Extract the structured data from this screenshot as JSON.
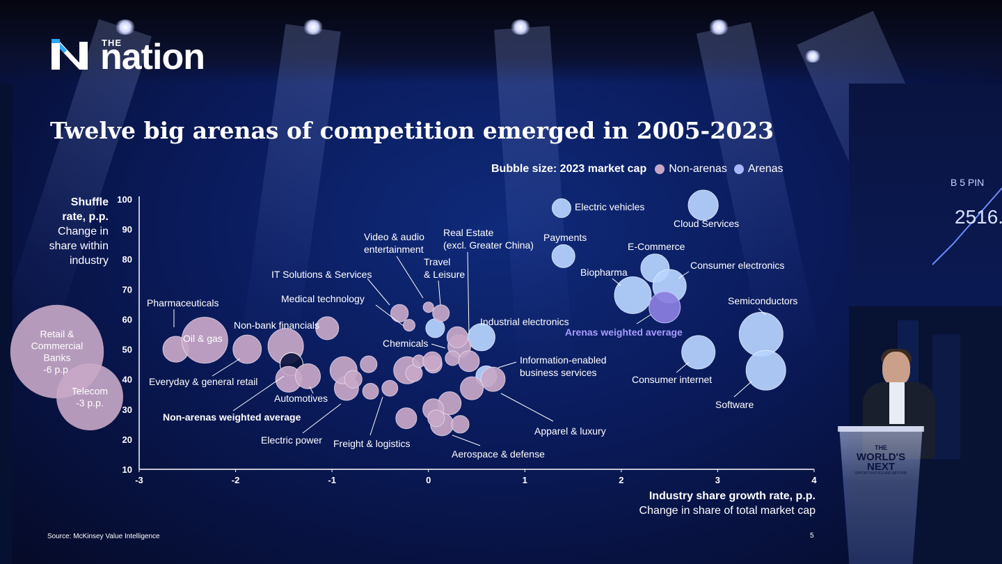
{
  "logo": {
    "the": "THE",
    "word": "nation"
  },
  "title": "Twelve big arenas of competition emerged in 2005-2023",
  "legend": {
    "label": "Bubble size: 2023 market cap",
    "items": [
      {
        "name": "Non-arenas",
        "color": "#c8a6c8"
      },
      {
        "name": "Arenas",
        "color": "#a8b6ff"
      }
    ]
  },
  "y_label": [
    "Shuffle",
    "rate, p.p.",
    "Change in",
    "share within",
    "industry"
  ],
  "x_label": "Industry share growth rate, p.p.",
  "x_sublabel": "Change in share of total market cap",
  "source": "Source: McKinsey Value Intelligence",
  "page_number": "5",
  "stage": {
    "right_panel_label": "B 5 PIN",
    "right_panel_value": "2516.",
    "podium_text": [
      "THE",
      "WORLD'S",
      "NEXT"
    ],
    "podium_sub": "OPPORTUNITIES AND BEYOND"
  },
  "colors": {
    "arena": "#b8d4ff",
    "non_arena": "#c8a8c8",
    "arena_avg": "#8b7fe0",
    "non_arena_avg": "#0c143c",
    "axis": "#ffffff",
    "label_avg": "#a89cff"
  },
  "chart_data": {
    "type": "scatter",
    "title": "Twelve big arenas of competition emerged in 2005-2023",
    "xlabel": "Industry share growth rate, p.p.",
    "ylabel": "Shuffle rate, p.p.",
    "xlim": [
      -3,
      4
    ],
    "ylim": [
      10,
      100
    ],
    "x_ticks": [
      "-3",
      "-2",
      "-1",
      "0",
      "1",
      "2",
      "3",
      "4"
    ],
    "y_ticks": [
      "10",
      "20",
      "30",
      "40",
      "50",
      "60",
      "70",
      "80",
      "90",
      "100"
    ],
    "grid": false,
    "legend": "top-right",
    "bubble_size": "2023 market cap",
    "outliers": [
      {
        "label": [
          "Retail &",
          "Commercial",
          "Banks",
          "-6 p.p."
        ],
        "size": 1.4
      },
      {
        "label": [
          "Telecom",
          "-3 p.p."
        ],
        "size": 1.0
      }
    ],
    "points": [
      {
        "label": "Electric vehicles",
        "x": 1.38,
        "y": 97,
        "size": 0.45,
        "arena": true
      },
      {
        "label": "Cloud Services",
        "x": 2.85,
        "y": 98,
        "size": 0.72,
        "arena": true
      },
      {
        "label": "Payments",
        "x": 1.4,
        "y": 81,
        "size": 0.55,
        "arena": true
      },
      {
        "label": "E-Commerce",
        "x": 2.35,
        "y": 77,
        "size": 0.68,
        "arena": true
      },
      {
        "label": "Consumer electronics",
        "x": 2.5,
        "y": 71,
        "size": 0.8,
        "arena": true
      },
      {
        "label": "Biopharma",
        "x": 2.12,
        "y": 68,
        "size": 0.88,
        "arena": true
      },
      {
        "label": "Arenas weighted average",
        "x": 2.45,
        "y": 64,
        "size": 0.75,
        "arena_avg": true
      },
      {
        "label": "Semiconductors",
        "x": 3.45,
        "y": 55,
        "size": 1.05,
        "arena": true
      },
      {
        "label": "Software",
        "x": 3.5,
        "y": 43,
        "size": 0.95,
        "arena": true
      },
      {
        "label": "Consumer internet",
        "x": 2.8,
        "y": 49,
        "size": 0.8,
        "arena": true
      },
      {
        "label": "Industrial electronics",
        "x": 0.55,
        "y": 54,
        "size": 0.65,
        "arena": true
      },
      {
        "label": "Information-enabled business services",
        "x": 0.6,
        "y": 41,
        "size": 0.5,
        "arena": true
      },
      {
        "label": "Video & audio entertainment",
        "x": 0.07,
        "y": 57,
        "size": 0.45,
        "arena": true
      },
      {
        "label": "Real Estate (excl. Greater China)",
        "x": 0.32,
        "y": 51,
        "size": 0.55
      },
      {
        "label": "Travel & Leisure",
        "x": 0.13,
        "y": 62,
        "size": 0.4
      },
      {
        "label": "IT Solutions & Services",
        "x": -0.3,
        "y": 62,
        "size": 0.42
      },
      {
        "label": "Medical technology",
        "x": -0.2,
        "y": 58,
        "size": 0.28
      },
      {
        "label": "Chemicals",
        "x": 0.05,
        "y": 45,
        "size": 0.42
      },
      {
        "label": "Pharmaceuticals",
        "x": -2.62,
        "y": 50,
        "size": 0.62
      },
      {
        "label": "Oil & gas",
        "x": -2.32,
        "y": 53,
        "size": 1.1
      },
      {
        "label": "Everyday & general retail",
        "x": -1.88,
        "y": 50,
        "size": 0.68
      },
      {
        "label": "Non-bank financials",
        "x": -1.05,
        "y": 57,
        "size": 0.55
      },
      {
        "label": "Automotives",
        "x": -1.48,
        "y": 51,
        "size": 0.85
      },
      {
        "label": "Non-arenas weighted average",
        "x": -1.42,
        "y": 45,
        "size": 0.55,
        "non_arena_avg": true
      },
      {
        "label": "Electric power",
        "x": -0.85,
        "y": 37,
        "size": 0.58
      },
      {
        "label": "Freight & logistics",
        "x": -0.4,
        "y": 37,
        "size": 0.38
      },
      {
        "label": "Apparel & luxury",
        "x": 0.67,
        "y": 40,
        "size": 0.58
      },
      {
        "label": "Aerospace & defense",
        "x": 0.14,
        "y": 25,
        "size": 0.55
      },
      {
        "x": -1.45,
        "y": 40,
        "size": 0.62
      },
      {
        "x": -1.25,
        "y": 41,
        "size": 0.6
      },
      {
        "x": -0.88,
        "y": 43,
        "size": 0.65
      },
      {
        "x": -0.78,
        "y": 40,
        "size": 0.42
      },
      {
        "x": -0.62,
        "y": 45,
        "size": 0.4
      },
      {
        "x": -0.6,
        "y": 36,
        "size": 0.38
      },
      {
        "x": -0.22,
        "y": 43,
        "size": 0.65
      },
      {
        "x": -0.15,
        "y": 42,
        "size": 0.4
      },
      {
        "x": -0.1,
        "y": 46,
        "size": 0.3
      },
      {
        "x": 0.04,
        "y": 46,
        "size": 0.45
      },
      {
        "x": 0.25,
        "y": 47,
        "size": 0.35
      },
      {
        "x": 0.3,
        "y": 54,
        "size": 0.5
      },
      {
        "x": 0.42,
        "y": 46,
        "size": 0.5
      },
      {
        "x": 0.45,
        "y": 37,
        "size": 0.55
      },
      {
        "x": 0.22,
        "y": 32,
        "size": 0.55
      },
      {
        "x": 0.05,
        "y": 30,
        "size": 0.5
      },
      {
        "x": 0.08,
        "y": 27,
        "size": 0.4
      },
      {
        "x": 0.33,
        "y": 25,
        "size": 0.42
      },
      {
        "x": -0.23,
        "y": 27,
        "size": 0.5
      },
      {
        "x": 0.0,
        "y": 64,
        "size": 0.25
      }
    ]
  }
}
